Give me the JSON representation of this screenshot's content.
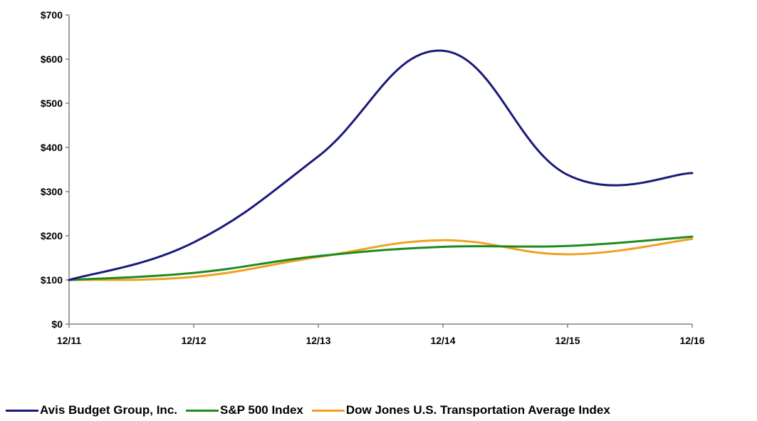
{
  "chart_data": {
    "type": "line",
    "title": "",
    "xlabel": "",
    "ylabel": "",
    "categories": [
      "12/11",
      "12/12",
      "12/13",
      "12/14",
      "12/15",
      "12/16"
    ],
    "y_ticks": [
      "$0",
      "$100",
      "$200",
      "$300",
      "$400",
      "$500",
      "$600",
      "$700"
    ],
    "ylim": [
      0,
      700
    ],
    "grid": false,
    "legend_position": "bottom",
    "series": [
      {
        "name": "Avis Budget Group, Inc.",
        "color": "#1a1a7a",
        "values": [
          100,
          185,
          380,
          619,
          338,
          342
        ]
      },
      {
        "name": "S&P 500 Index",
        "color": "#1e8a1e",
        "values": [
          100,
          116,
          154,
          175,
          177,
          198
        ]
      },
      {
        "name": "Dow Jones U.S. Transportation Average Index",
        "color": "#f0a020",
        "values": [
          100,
          107,
          152,
          190,
          158,
          193
        ]
      }
    ]
  }
}
